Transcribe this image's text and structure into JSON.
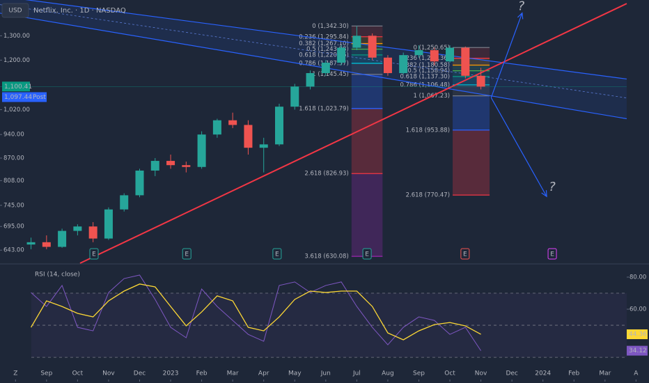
{
  "header": {
    "currency": "USD",
    "symbol": "Netflix, Inc. · 1D · NASDAQ"
  },
  "chart_data": [
    {
      "type": "candlestick",
      "log_scale": true,
      "xlim": [
        -1.5,
        18.7
      ],
      "xticks": [
        {
          "value": -1,
          "label": "Z"
        },
        {
          "value": 0,
          "label": "Sep"
        },
        {
          "value": 1,
          "label": "Oct"
        },
        {
          "value": 2,
          "label": "Nov"
        },
        {
          "value": 3,
          "label": "Dec"
        },
        {
          "value": 4,
          "label": "2023"
        },
        {
          "value": 5,
          "label": "Feb"
        },
        {
          "value": 6,
          "label": "Mar"
        },
        {
          "value": 7,
          "label": "Apr"
        },
        {
          "value": 8,
          "label": "May"
        },
        {
          "value": 9,
          "label": "Jun"
        },
        {
          "value": 10,
          "label": "Jul"
        },
        {
          "value": 11,
          "label": "Aug"
        },
        {
          "value": 12,
          "label": "Sep"
        },
        {
          "value": 13,
          "label": "Oct"
        },
        {
          "value": 14,
          "label": "Nov"
        },
        {
          "value": 15,
          "label": "Dec"
        },
        {
          "value": 16,
          "label": "2024"
        },
        {
          "value": 17,
          "label": "Feb"
        },
        {
          "value": 18,
          "label": "Mar"
        },
        {
          "value": 19,
          "label": "A"
        }
      ],
      "ylim": [
        616,
        1462
      ],
      "yticks": [
        {
          "value": 1300,
          "label": "1,300.00"
        },
        {
          "value": 1200,
          "label": "1,200.00"
        },
        {
          "value": 1020,
          "label": "1,020.00"
        },
        {
          "value": 940,
          "label": "940.00"
        },
        {
          "value": 870,
          "label": "870.00"
        },
        {
          "value": 808,
          "label": "808.00"
        },
        {
          "value": 745,
          "label": "745.00"
        },
        {
          "value": 695,
          "label": "695.00"
        },
        {
          "value": 643,
          "label": "643.00"
        }
      ],
      "up_color": "#26a69a",
      "down_color": "#ef5350",
      "x": [
        -0.5,
        0,
        0.5,
        1,
        1.5,
        2,
        2.5,
        3,
        3.5,
        4,
        4.5,
        5,
        5.5,
        6,
        6.5,
        7,
        7.5,
        8,
        8.5,
        9,
        9.5,
        10,
        10.5,
        11,
        11.5,
        12,
        12.5,
        13,
        13.5,
        14
      ],
      "ohlc": [
        [
          655,
          670,
          645,
          660
        ],
        [
          660,
          675,
          645,
          650
        ],
        [
          650,
          690,
          648,
          685
        ],
        [
          685,
          700,
          675,
          695
        ],
        [
          695,
          705,
          660,
          668
        ],
        [
          668,
          740,
          665,
          735
        ],
        [
          735,
          775,
          730,
          770
        ],
        [
          770,
          840,
          765,
          835
        ],
        [
          835,
          870,
          820,
          862
        ],
        [
          862,
          880,
          840,
          850
        ],
        [
          850,
          860,
          830,
          845
        ],
        [
          845,
          950,
          840,
          940
        ],
        [
          940,
          990,
          930,
          985
        ],
        [
          985,
          1010,
          960,
          970
        ],
        [
          970,
          985,
          880,
          900
        ],
        [
          900,
          930,
          830,
          910
        ],
        [
          910,
          1040,
          905,
          1030
        ],
        [
          1030,
          1110,
          1020,
          1100
        ],
        [
          1100,
          1160,
          1090,
          1150
        ],
        [
          1150,
          1200,
          1140,
          1190
        ],
        [
          1190,
          1260,
          1180,
          1250
        ],
        [
          1250,
          1342,
          1240,
          1300
        ],
        [
          1300,
          1310,
          1200,
          1210
        ],
        [
          1210,
          1220,
          1140,
          1150
        ],
        [
          1150,
          1230,
          1145,
          1220
        ],
        [
          1220,
          1260,
          1210,
          1240
        ],
        [
          1240,
          1250,
          1180,
          1195
        ],
        [
          1195,
          1260,
          1190,
          1250
        ],
        [
          1250,
          1255,
          1130,
          1140
        ],
        [
          1140,
          1170,
          1090,
          1100
        ]
      ],
      "last_price": {
        "value": 1100.41,
        "label": "1,100.41",
        "color": "#089981"
      },
      "post_price": {
        "value": 1097.44,
        "label": "1,097.44",
        "tag": "Post",
        "color": "#2962ff"
      },
      "fibs": [
        {
          "xrange": [
            9.83,
            10.83
          ],
          "levels": [
            {
              "value": 1342.3,
              "label": "0 (1,342.30)",
              "color": "#787b86"
            },
            {
              "value": 1295.84,
              "label": "0.236 (1,295.84)",
              "color": "#f23645"
            },
            {
              "value": 1267.1,
              "label": "0.382 (1,267.10)",
              "color": "#ff9800"
            },
            {
              "value": 1243.88,
              "label": "0.5 (1,243.88)",
              "color": "#4caf50"
            },
            {
              "value": 1220.66,
              "label": "0.618 (1,220.66)",
              "color": "#089981"
            },
            {
              "value": 1187.57,
              "label": "0.786 (1,187.57)",
              "color": "#00bcd4"
            },
            {
              "value": 1145.45,
              "label": "1 (1,145.45)",
              "color": "#787b86"
            },
            {
              "value": 1023.79,
              "label": "1.618 (1,023.79)",
              "color": "#2962ff"
            },
            {
              "value": 826.93,
              "label": "2.618 (826.93)",
              "color": "#f23645"
            },
            {
              "value": 630.08,
              "label": "3.618 (630.08)",
              "color": "#9c27b0"
            }
          ]
        },
        {
          "xrange": [
            13.09,
            14.28
          ],
          "levels": [
            {
              "value": 1250.65,
              "label": "0 (1,250.65)",
              "color": "#787b86"
            },
            {
              "value": 1207.36,
              "label": "0.236 (1,207.36)",
              "color": "#f23645"
            },
            {
              "value": 1180.58,
              "label": "0.382 (1,180.58)",
              "color": "#ff9800"
            },
            {
              "value": 1158.94,
              "label": "0.5 (1,158.94)",
              "color": "#4caf50"
            },
            {
              "value": 1137.3,
              "label": "0.618 (1,137.30)",
              "color": "#089981"
            },
            {
              "value": 1106.48,
              "label": "0.786 (1,106.48)",
              "color": "#00bcd4"
            },
            {
              "value": 1067.23,
              "label": "1 (1,067.23)",
              "color": "#787b86"
            },
            {
              "value": 953.88,
              "label": "1.618 (953.88)",
              "color": "#2962ff"
            },
            {
              "value": 770.47,
              "label": "2.618 (770.47)",
              "color": "#f23645"
            }
          ]
        }
      ],
      "drawings": [
        {
          "kind": "channel-upper",
          "color": "#2962ff",
          "x": [
            -1.5,
            18.7
          ],
          "y": [
            1480,
            1128
          ]
        },
        {
          "kind": "channel-mid",
          "color": "#5b7bd5",
          "x": [
            -1.5,
            18.7
          ],
          "y": [
            1440,
            1060
          ]
        },
        {
          "kind": "channel-lower",
          "color": "#2962ff",
          "x": [
            -1.5,
            18.7
          ],
          "y": [
            1400,
            990
          ]
        },
        {
          "kind": "trend",
          "color": "#f23645",
          "x": [
            1.08,
            18.7
          ],
          "y": [
            616,
            1445
          ]
        },
        {
          "kind": "arrow",
          "color": "#2962ff",
          "x": [
            14.33,
            15.33
          ],
          "y": [
            1061,
            1401
          ]
        },
        {
          "kind": "arrow",
          "color": "#2962ff",
          "x": [
            14.33,
            16.12
          ],
          "y": [
            1061,
            767
          ]
        }
      ],
      "annotations": [
        {
          "text": "?",
          "x": 15.3,
          "y": 1430,
          "color": "#2962ff"
        },
        {
          "text": "?",
          "x": 16.3,
          "y": 790,
          "color": "#f23645"
        }
      ],
      "events": [
        {
          "label": "E",
          "x": 1.53,
          "color": "#26a69a"
        },
        {
          "label": "E",
          "x": 4.52,
          "color": "#26a69a"
        },
        {
          "label": "E",
          "x": 7.43,
          "color": "#26a69a"
        },
        {
          "label": "E",
          "x": 10.33,
          "color": "#26a69a"
        },
        {
          "label": "E",
          "x": 13.49,
          "color": "#ef5350"
        },
        {
          "label": "E",
          "x": 16.3,
          "color": "#e040fb"
        }
      ]
    },
    {
      "type": "line",
      "title": "RSI (14, close)",
      "xlim": [
        -1.5,
        18.7
      ],
      "ylim": [
        27,
        87.8
      ],
      "yticks": [
        {
          "value": 80,
          "label": "80.00"
        },
        {
          "value": 60,
          "label": "60.00"
        }
      ],
      "bands": [
        70,
        50,
        30
      ],
      "x": [
        -0.5,
        0,
        0.5,
        1,
        1.5,
        2,
        2.5,
        3,
        3.5,
        4,
        4.5,
        5,
        5.5,
        6,
        6.5,
        7,
        7.5,
        8,
        8.5,
        9,
        9.5,
        10,
        10.5,
        11,
        11.5,
        12,
        12.5,
        13,
        13.5,
        14
      ],
      "series": [
        {
          "color": "#7e57c2",
          "values": [
            70.4,
            61.7,
            74.8,
            48.7,
            46.5,
            70.4,
            79.1,
            81.3,
            66.1,
            48.7,
            42.2,
            72.6,
            61.7,
            53.0,
            44.3,
            40.0,
            74.8,
            77.0,
            70.4,
            74.8,
            77.0,
            61.7,
            48.7,
            37.8,
            48.7,
            55.2,
            53.0,
            44.3,
            48.7,
            34.12
          ]
        },
        {
          "color": "#fdd835",
          "values": [
            48.7,
            65.2,
            61.7,
            57.4,
            55.2,
            65.2,
            71.3,
            75.7,
            73.9,
            61.7,
            49.6,
            58.3,
            68.3,
            65.2,
            48.7,
            46.5,
            55.2,
            66.1,
            71.3,
            70.4,
            71.3,
            71.3,
            61.7,
            45.2,
            40.9,
            46.5,
            50.4,
            51.7,
            49.6,
            44.36
          ]
        }
      ]
    }
  ]
}
